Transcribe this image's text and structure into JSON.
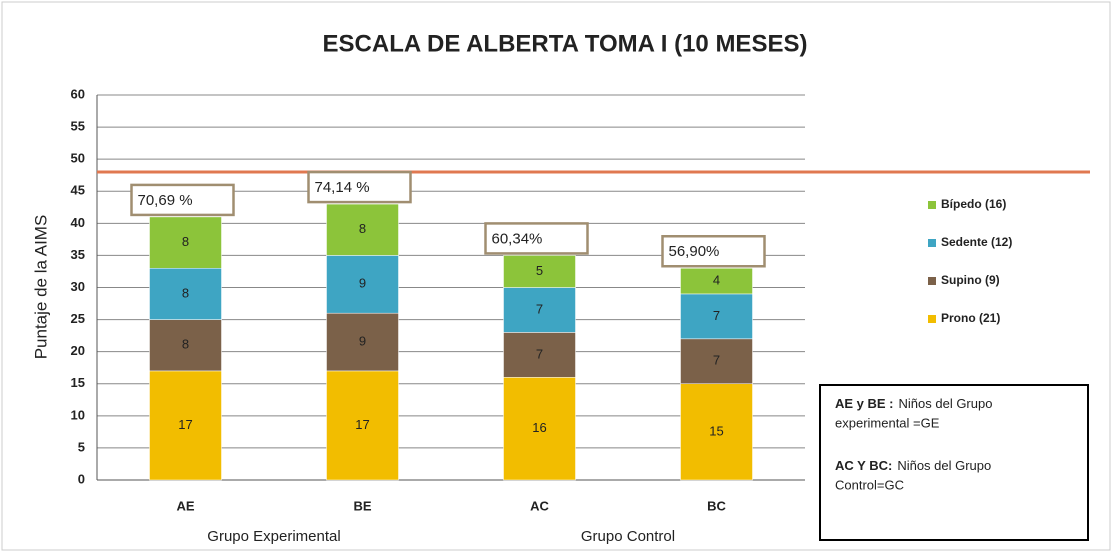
{
  "chart_data": {
    "type": "stacked_bar",
    "title": "ESCALA DE ALBERTA TOMA I (10 MESES)",
    "y_label": "Puntaje de la AIMS",
    "categories": [
      "AE",
      "BE",
      "AC",
      "BC"
    ],
    "groups": [
      {
        "name": "Grupo Experimental",
        "span": [
          0,
          1
        ]
      },
      {
        "name": "Grupo Control",
        "span": [
          2,
          3
        ]
      }
    ],
    "series": [
      {
        "name": "Prono (21)",
        "color": "#f2bd00",
        "values": [
          17,
          17,
          16,
          15
        ]
      },
      {
        "name": "Supino (9)",
        "color": "#7b6149",
        "values": [
          8,
          9,
          7,
          7
        ]
      },
      {
        "name": "Sedente (12)",
        "color": "#3ea5c3",
        "values": [
          8,
          9,
          7,
          7
        ]
      },
      {
        "name": "Bípedo (16)",
        "color": "#8cc43a",
        "values": [
          8,
          8,
          5,
          4
        ]
      }
    ],
    "percent_labels": [
      "70,69 %",
      "74,14 %",
      "60,34%",
      "56,90%"
    ],
    "reference_line": {
      "value": 48,
      "color": "#e07850"
    },
    "ylim": [
      0,
      60
    ],
    "yticks": [
      0,
      5,
      10,
      15,
      20,
      25,
      30,
      35,
      40,
      45,
      50,
      55,
      60
    ],
    "grid": true,
    "note": [
      {
        "bold": "AE y BE :",
        "text": "Niños del Grupo experimental =GE"
      },
      {
        "bold": "AC Y BC:",
        "text": "Niños del Grupo Control=GC"
      }
    ]
  }
}
